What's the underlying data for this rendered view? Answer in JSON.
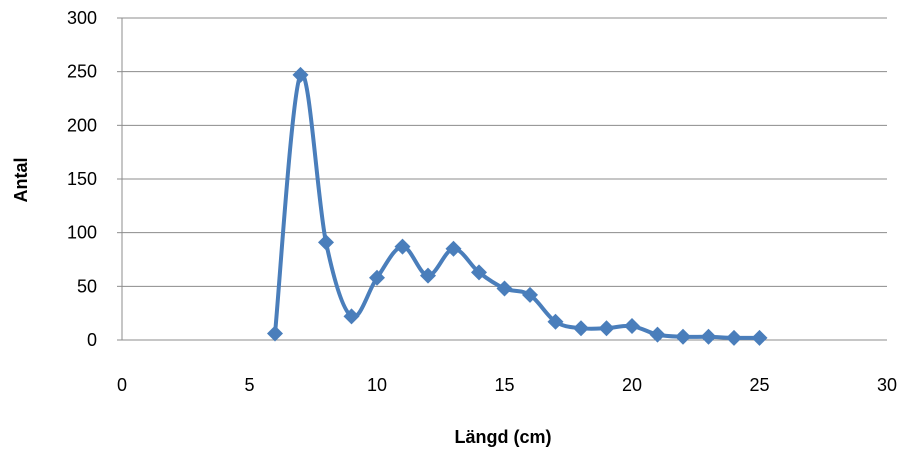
{
  "chart_data": {
    "type": "scatter",
    "xlabel": "Längd (cm)",
    "ylabel": "Antal",
    "xlim": [
      0,
      30
    ],
    "ylim": [
      0,
      300
    ],
    "x_ticks": [
      "0",
      "5",
      "10",
      "15",
      "20",
      "25",
      "30"
    ],
    "y_ticks": [
      "0",
      "50",
      "100",
      "150",
      "200",
      "250",
      "300"
    ],
    "grid": "horizontal",
    "legend": "none",
    "line_style": "smooth",
    "marker": "diamond",
    "color": "#4a7ebb",
    "series": [
      {
        "x": [
          6,
          7,
          8,
          9,
          10,
          11,
          12,
          13,
          14,
          15,
          16,
          17,
          18,
          19,
          20,
          21,
          22,
          23,
          24,
          25
        ],
        "y": [
          6,
          247,
          91,
          22,
          58,
          87,
          60,
          85,
          63,
          48,
          42,
          17,
          11,
          11,
          13,
          5,
          3,
          3,
          2,
          2
        ]
      }
    ]
  }
}
